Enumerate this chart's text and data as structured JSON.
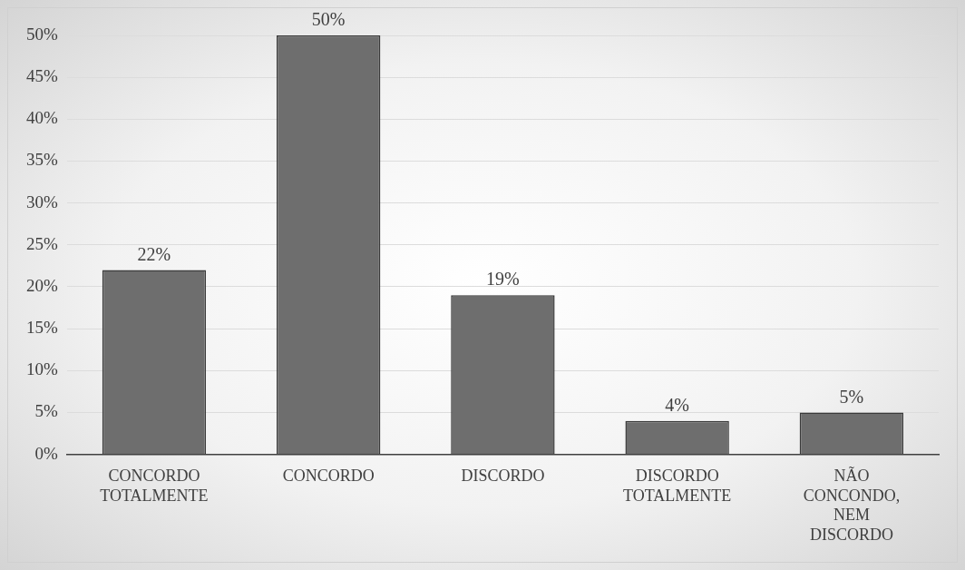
{
  "chart_data": {
    "type": "bar",
    "categories": [
      "CONCORDO TOTALMENTE",
      "CONCORDO",
      "DISCORDO",
      "DISCORDO TOTALMENTE",
      "NÃO CONCONDO, NEM DISCORDO"
    ],
    "values": [
      22,
      50,
      19,
      4,
      5
    ],
    "value_labels": [
      "22%",
      "50%",
      "19%",
      "4%",
      "5%"
    ],
    "color": "#6e6e6e",
    "ylim": [
      0,
      50
    ],
    "yticks": [
      {
        "value": 0,
        "label": "0%"
      },
      {
        "value": 5,
        "label": "5%"
      },
      {
        "value": 10,
        "label": "10%"
      },
      {
        "value": 15,
        "label": "15%"
      },
      {
        "value": 20,
        "label": "20%"
      },
      {
        "value": 25,
        "label": "25%"
      },
      {
        "value": 30,
        "label": "30%"
      },
      {
        "value": 35,
        "label": "35%"
      },
      {
        "value": 40,
        "label": "40%"
      },
      {
        "value": 45,
        "label": "45%"
      },
      {
        "value": 50,
        "label": "50%"
      }
    ],
    "grid": "y",
    "legend": false
  }
}
